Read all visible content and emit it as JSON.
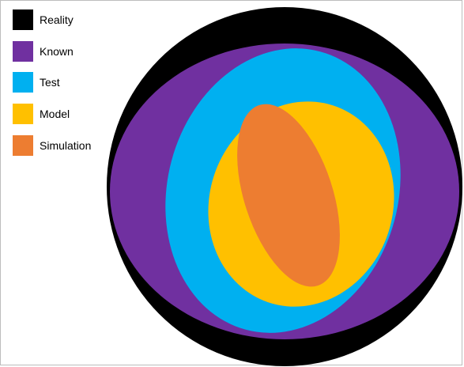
{
  "legend": {
    "items": [
      {
        "label": "Reality",
        "color": "#000000"
      },
      {
        "label": "Known",
        "color": "#7030a0"
      },
      {
        "label": "Test",
        "color": "#00b0f0"
      },
      {
        "label": "Model",
        "color": "#ffc000"
      },
      {
        "label": "Simulation",
        "color": "#ed7d31"
      }
    ]
  },
  "regions": {
    "reality_color": "#000000",
    "known_color": "#7030a0",
    "test_color": "#00b0f0",
    "model_color": "#ffc000",
    "simulation_color": "#ed7d31"
  }
}
